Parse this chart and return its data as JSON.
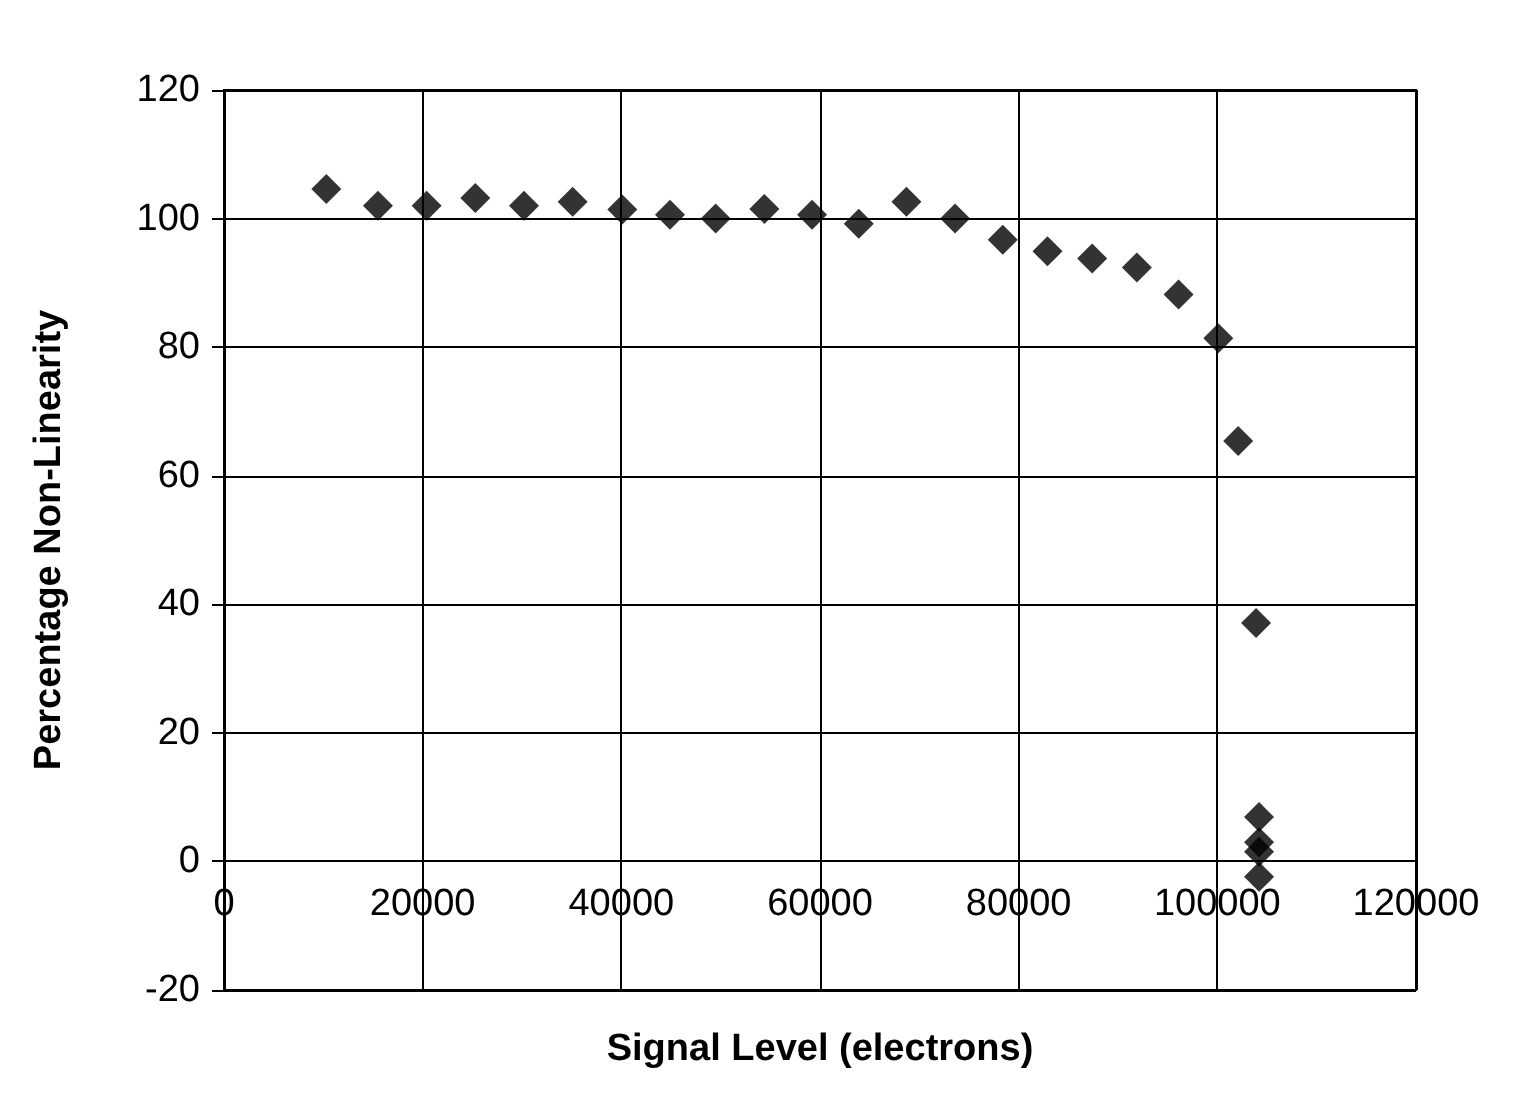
{
  "chart_data": {
    "type": "scatter",
    "xlabel": "Signal Level (electrons)",
    "ylabel": "Percentage Non-Linearity",
    "x": [
      10300,
      15500,
      20400,
      25300,
      30200,
      35100,
      40100,
      44900,
      49500,
      54400,
      59200,
      63900,
      68700,
      73600,
      78400,
      82900,
      87400,
      91900,
      96100,
      100100,
      102100,
      103900,
      104200,
      104200,
      104200,
      104200
    ],
    "series": [
      {
        "color": "#000000",
        "values": [
          104.6,
          102,
          102,
          103.2,
          102,
          102.6,
          101.4,
          100.6,
          100,
          101.5,
          100.6,
          99.2,
          102.6,
          100,
          96.7,
          94.9,
          93.8,
          92.4,
          88.2,
          81.4,
          65.4,
          37.1,
          6.9,
          3,
          1.5,
          -2.4
        ]
      }
    ],
    "xlim": [
      0,
      120000
    ],
    "xticks": [
      0,
      20000,
      40000,
      60000,
      80000,
      100000,
      120000
    ],
    "ylim": [
      -20,
      120
    ],
    "yticks": [
      -20,
      0,
      20,
      40,
      60,
      80,
      100,
      120
    ],
    "grid": true,
    "marker": "diamond"
  }
}
